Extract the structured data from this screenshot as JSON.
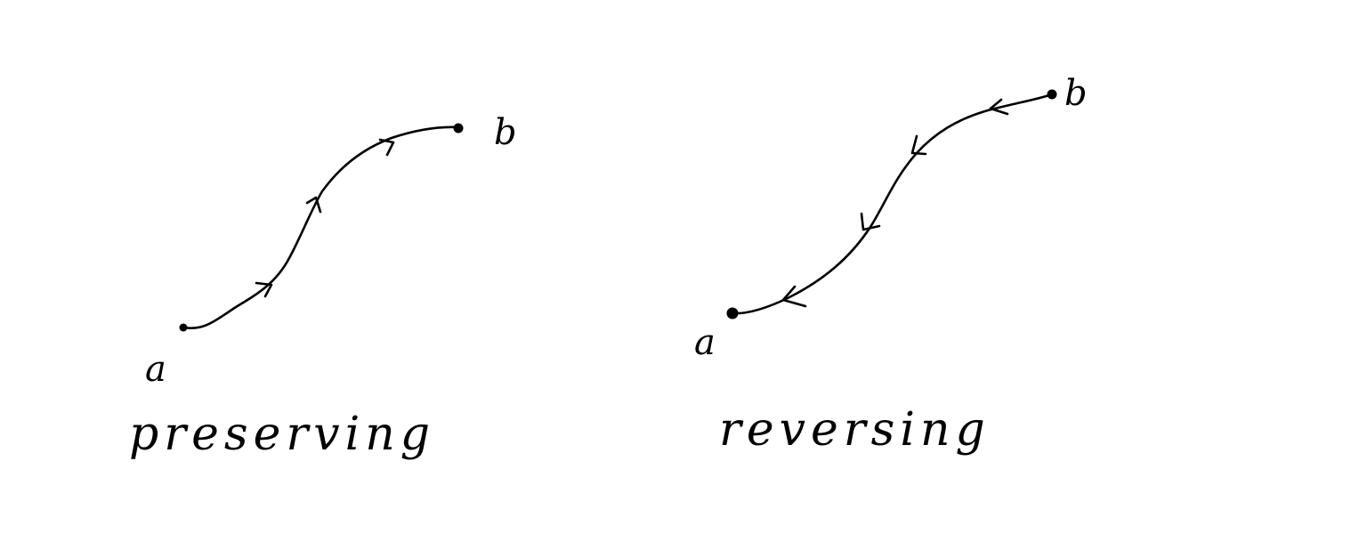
{
  "panels": [
    {
      "caption": "preserving",
      "start_label": "a",
      "end_label": "b",
      "direction": "a-to-b"
    },
    {
      "caption": "reversing",
      "start_label": "a",
      "end_label": "b",
      "direction": "b-to-a"
    }
  ],
  "colors": {
    "ink": "#000000",
    "background": "#ffffff"
  }
}
